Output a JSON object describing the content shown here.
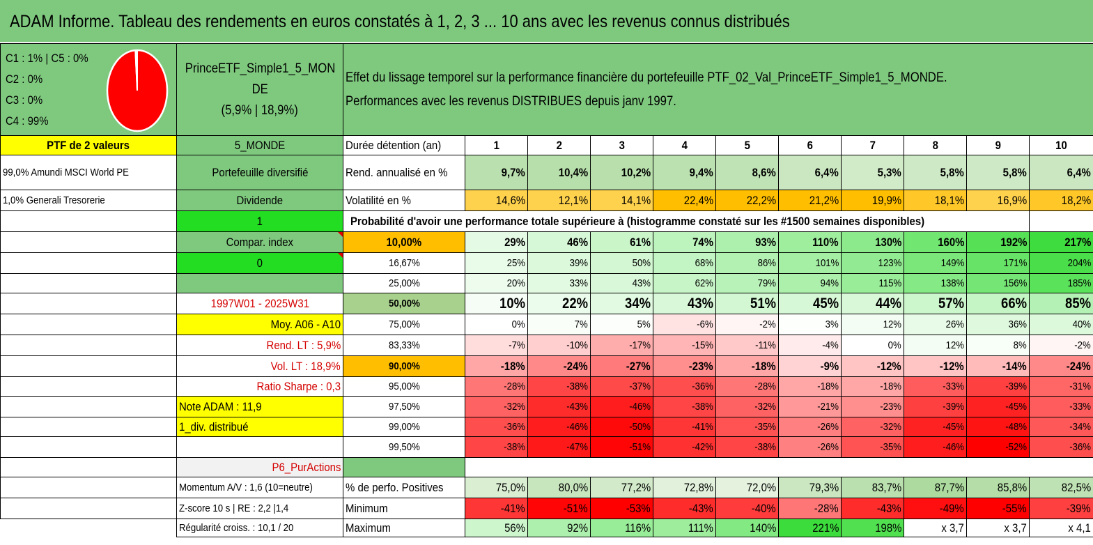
{
  "title": "ADAM Informe. Tableau des rendements en euros constatés à 1, 2, 3 ... 10 ans avec les revenus connus distribués",
  "composition": {
    "line1": "C1 : 1% | C5 : 0%",
    "line2": "C2 : 0%",
    "line3": "C3 : 0%",
    "line4": "C4 : 99%",
    "pie_slices": [
      {
        "label": "C4",
        "value": 99,
        "color": "#ff0000"
      },
      {
        "label": "C1",
        "value": 1,
        "color": "#ffffff"
      }
    ]
  },
  "portfolio": {
    "name_line1": "PrinceETF_Simple1_5_MON",
    "name_line2": "DE",
    "name_line3": "(5,9% | 18,9%)",
    "description": "Effet du lissage temporel sur la performance financière du portefeuille PTF_02_Val_PrinceETF_Simple1_5_MONDE. Performances avec les revenus DISTRIBUES depuis janv 1997."
  },
  "left_col": {
    "ptf_count": "PTF de 2 valeurs",
    "holding1": "99,0% Amundi MSCI World PE",
    "holding2": "1,0% Generali Tresorerie"
  },
  "mid_col": {
    "zone": "5_MONDE",
    "type": "Portefeuille diversifié",
    "dividend": "Dividende",
    "dividend_value": "1",
    "compar": "Compar. index",
    "compar_value": "0",
    "period": "1997W01 - 2025W31",
    "moy": "Moy. A06 - A10",
    "rend_lt": "Rend. LT : 5,9%",
    "vol_lt": "Vol. LT : 18,9%",
    "sharpe": "Ratio Sharpe : 0,3",
    "note": "Note ADAM : 11,9",
    "div": "1_div. distribué",
    "profile": "P6_PurActions",
    "momentum": "Momentum A/V : 1,6 (10=neutre)",
    "zscore": "Z-score 10 s | RE : 2,2 |1,4",
    "regularite": "Régularité croiss. : 10,1 / 20"
  },
  "table": {
    "duration_label": "Durée détention (an)",
    "years": [
      "1",
      "2",
      "3",
      "4",
      "5",
      "6",
      "7",
      "8",
      "9",
      "10"
    ],
    "rend_label": "Rend. annualisé en %",
    "rend": [
      "9,7%",
      "10,4%",
      "10,2%",
      "9,4%",
      "8,6%",
      "6,4%",
      "5,3%",
      "5,8%",
      "5,8%",
      "6,4%"
    ],
    "vol_label": "Volatilité en %",
    "vol": [
      "14,6%",
      "12,1%",
      "14,1%",
      "22,4%",
      "22,2%",
      "21,2%",
      "19,9%",
      "18,1%",
      "16,9%",
      "18,2%"
    ],
    "proba_header": "Probabilité d'avoir une performance totale supérieure à (histogramme constaté sur les #1500 semaines disponibles)",
    "proba_rows": [
      {
        "label": "10,00%",
        "values": [
          "29%",
          "46%",
          "61%",
          "74%",
          "93%",
          "110%",
          "130%",
          "160%",
          "192%",
          "217%"
        ]
      },
      {
        "label": "16,67%",
        "values": [
          "25%",
          "39%",
          "50%",
          "68%",
          "86%",
          "101%",
          "123%",
          "149%",
          "171%",
          "204%"
        ]
      },
      {
        "label": "25,00%",
        "values": [
          "20%",
          "33%",
          "43%",
          "62%",
          "79%",
          "94%",
          "115%",
          "138%",
          "156%",
          "185%"
        ]
      },
      {
        "label": "50,00%",
        "values": [
          "10%",
          "22%",
          "34%",
          "43%",
          "51%",
          "45%",
          "44%",
          "57%",
          "66%",
          "85%"
        ]
      },
      {
        "label": "75,00%",
        "values": [
          "0%",
          "7%",
          "5%",
          "-6%",
          "-2%",
          "3%",
          "12%",
          "26%",
          "36%",
          "40%"
        ]
      },
      {
        "label": "83,33%",
        "values": [
          "-7%",
          "-10%",
          "-17%",
          "-15%",
          "-11%",
          "-4%",
          "0%",
          "12%",
          "8%",
          "-2%"
        ]
      },
      {
        "label": "90,00%",
        "values": [
          "-18%",
          "-24%",
          "-27%",
          "-23%",
          "-18%",
          "-9%",
          "-12%",
          "-12%",
          "-14%",
          "-24%"
        ]
      },
      {
        "label": "95,00%",
        "values": [
          "-28%",
          "-38%",
          "-37%",
          "-36%",
          "-28%",
          "-18%",
          "-18%",
          "-33%",
          "-39%",
          "-31%"
        ]
      },
      {
        "label": "97,50%",
        "values": [
          "-32%",
          "-43%",
          "-46%",
          "-38%",
          "-32%",
          "-21%",
          "-23%",
          "-39%",
          "-45%",
          "-33%"
        ]
      },
      {
        "label": "99,00%",
        "values": [
          "-36%",
          "-46%",
          "-50%",
          "-41%",
          "-35%",
          "-26%",
          "-32%",
          "-45%",
          "-48%",
          "-34%"
        ]
      },
      {
        "label": "99,50%",
        "values": [
          "-38%",
          "-47%",
          "-51%",
          "-42%",
          "-38%",
          "-26%",
          "-35%",
          "-46%",
          "-52%",
          "-36%"
        ]
      }
    ],
    "pos_label": "% de perfo. Positives",
    "pos": [
      "75,0%",
      "80,0%",
      "77,2%",
      "72,8%",
      "72,0%",
      "79,3%",
      "83,7%",
      "87,7%",
      "85,8%",
      "82,5%"
    ],
    "min_label": "Minimum",
    "min": [
      "-41%",
      "-51%",
      "-53%",
      "-43%",
      "-40%",
      "-28%",
      "-43%",
      "-49%",
      "-55%",
      "-39%"
    ],
    "max_label": "Maximum",
    "max": [
      "56%",
      "92%",
      "116%",
      "111%",
      "140%",
      "221%",
      "198%",
      "x 3,7",
      "x 3,7",
      "x 4,1"
    ]
  },
  "colors": {
    "header_green": "#7fc97f",
    "yellow": "#ffff00",
    "bright_green": "#22dd22",
    "orange": "#ffbf00",
    "red_text": "#d40000"
  }
}
